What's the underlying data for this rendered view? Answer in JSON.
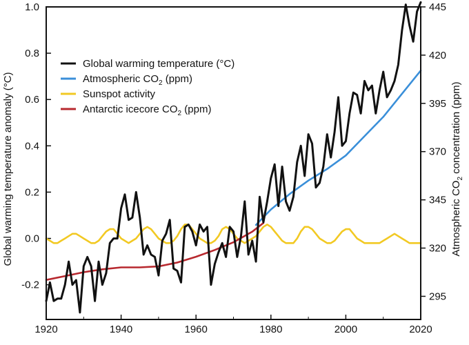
{
  "chart_data": {
    "type": "line",
    "title": "",
    "xlabel": "",
    "ylabel": "Global warming temperature anomaly (°C)",
    "y2label_parts": [
      "Atmospheric CO",
      "2",
      " concentration (ppm)"
    ],
    "xlim": [
      1920,
      2020
    ],
    "ylim": [
      -0.35,
      1.0
    ],
    "y2lim": [
      283,
      445
    ],
    "x_ticks": [
      1920,
      1940,
      1960,
      1980,
      2000,
      2020
    ],
    "x_tick_labels": [
      "1920",
      "1940",
      "1960",
      "1980",
      "2000",
      "2020"
    ],
    "y_ticks": [
      -0.2,
      0.0,
      0.2,
      0.4,
      0.6,
      0.8,
      1.0
    ],
    "y_tick_labels": [
      "-0.2",
      "0.0",
      "0.2",
      "0.4",
      "0.6",
      "0.8",
      "1.0"
    ],
    "y2_ticks": [
      295,
      320,
      345,
      370,
      395,
      420,
      445
    ],
    "y2_tick_labels": [
      "295",
      "320",
      "345",
      "370",
      "395",
      "420",
      "445"
    ],
    "grid": false,
    "legend_position": "top-left",
    "legend": [
      {
        "key": "temperature",
        "label": "Global warming temperature (°C)",
        "color": "#111111"
      },
      {
        "key": "atmospheric_co2",
        "label_parts": [
          "Atmospheric CO",
          "2",
          " (ppm)"
        ],
        "color": "#3a8fd9"
      },
      {
        "key": "sunspot",
        "label": "Sunspot activity",
        "color": "#f2c923"
      },
      {
        "key": "icecore_co2",
        "label_parts": [
          "Antarctic icecore CO",
          "2",
          " (ppm)"
        ],
        "color": "#b7282e"
      }
    ],
    "series": [
      {
        "key": "sunspot",
        "name": "Sunspot activity",
        "axis": "left",
        "color": "#f2c923",
        "x": [
          1920,
          1921,
          1922,
          1923,
          1924,
          1925,
          1926,
          1927,
          1928,
          1929,
          1930,
          1931,
          1932,
          1933,
          1934,
          1935,
          1936,
          1937,
          1938,
          1939,
          1940,
          1941,
          1942,
          1943,
          1944,
          1945,
          1946,
          1947,
          1948,
          1949,
          1950,
          1951,
          1952,
          1953,
          1954,
          1955,
          1956,
          1957,
          1958,
          1959,
          1960,
          1961,
          1962,
          1963,
          1964,
          1965,
          1966,
          1967,
          1968,
          1969,
          1970,
          1971,
          1972,
          1973,
          1974,
          1975,
          1976,
          1977,
          1978,
          1979,
          1980,
          1981,
          1982,
          1983,
          1984,
          1985,
          1986,
          1987,
          1988,
          1989,
          1990,
          1991,
          1992,
          1993,
          1994,
          1995,
          1996,
          1997,
          1998,
          1999,
          2000,
          2001,
          2002,
          2003,
          2004,
          2005,
          2006,
          2007,
          2008,
          2009,
          2010,
          2011,
          2012,
          2013,
          2014,
          2015,
          2016,
          2017,
          2018,
          2019,
          2020
        ],
        "values": [
          0.0,
          -0.01,
          -0.02,
          -0.02,
          -0.01,
          0.0,
          0.01,
          0.02,
          0.02,
          0.01,
          0.0,
          -0.01,
          -0.02,
          -0.02,
          -0.01,
          0.01,
          0.03,
          0.04,
          0.04,
          0.02,
          0.0,
          -0.01,
          -0.02,
          -0.01,
          0.0,
          0.02,
          0.04,
          0.05,
          0.04,
          0.02,
          0.0,
          -0.01,
          -0.02,
          -0.02,
          -0.01,
          0.01,
          0.04,
          0.06,
          0.06,
          0.04,
          0.02,
          0.0,
          -0.01,
          -0.02,
          -0.02,
          -0.01,
          0.01,
          0.04,
          0.05,
          0.04,
          0.02,
          0.0,
          -0.01,
          -0.02,
          -0.01,
          0.0,
          0.01,
          0.03,
          0.05,
          0.06,
          0.05,
          0.03,
          0.01,
          -0.01,
          -0.02,
          -0.02,
          -0.02,
          0.0,
          0.03,
          0.05,
          0.05,
          0.04,
          0.02,
          0.0,
          -0.01,
          -0.02,
          -0.02,
          -0.01,
          0.01,
          0.03,
          0.04,
          0.04,
          0.02,
          0.0,
          -0.01,
          -0.02,
          -0.02,
          -0.02,
          -0.02,
          -0.02,
          -0.01,
          0.0,
          0.01,
          0.02,
          0.01,
          0.0,
          -0.01,
          -0.02,
          -0.02,
          -0.02,
          -0.02
        ]
      },
      {
        "key": "icecore_co2",
        "name": "Antarctic icecore CO2 (ppm)",
        "axis": "right",
        "color": "#b7282e",
        "x": [
          1920,
          1925,
          1930,
          1935,
          1940,
          1945,
          1950,
          1955,
          1960,
          1965,
          1970,
          1975,
          1978
        ],
        "values": [
          303.5,
          305.5,
          307.5,
          309,
          310,
          310,
          310.5,
          312.5,
          315.5,
          319,
          323,
          328.5,
          333
        ]
      },
      {
        "key": "atmospheric_co2",
        "name": "Atmospheric CO2 (ppm)",
        "axis": "right",
        "color": "#3a8fd9",
        "x": [
          1976,
          1980,
          1985,
          1990,
          1995,
          2000,
          2005,
          2010,
          2015,
          2020
        ],
        "values": [
          332,
          340,
          348,
          355,
          361,
          368,
          378,
          388,
          400,
          412
        ]
      },
      {
        "key": "temperature",
        "name": "Global warming temperature (°C)",
        "axis": "left",
        "color": "#111111",
        "x": [
          1920,
          1921,
          1922,
          1923,
          1924,
          1925,
          1926,
          1927,
          1928,
          1929,
          1930,
          1931,
          1932,
          1933,
          1934,
          1935,
          1936,
          1937,
          1938,
          1939,
          1940,
          1941,
          1942,
          1943,
          1944,
          1945,
          1946,
          1947,
          1948,
          1949,
          1950,
          1951,
          1952,
          1953,
          1954,
          1955,
          1956,
          1957,
          1958,
          1959,
          1960,
          1961,
          1962,
          1963,
          1964,
          1965,
          1966,
          1967,
          1968,
          1969,
          1970,
          1971,
          1972,
          1973,
          1974,
          1975,
          1976,
          1977,
          1978,
          1979,
          1980,
          1981,
          1982,
          1983,
          1984,
          1985,
          1986,
          1987,
          1988,
          1989,
          1990,
          1991,
          1992,
          1993,
          1994,
          1995,
          1996,
          1997,
          1998,
          1999,
          2000,
          2001,
          2002,
          2003,
          2004,
          2005,
          2006,
          2007,
          2008,
          2009,
          2010,
          2011,
          2012,
          2013,
          2014,
          2015,
          2016,
          2017,
          2018,
          2019,
          2020
        ],
        "values": [
          -0.27,
          -0.19,
          -0.27,
          -0.26,
          -0.26,
          -0.2,
          -0.1,
          -0.2,
          -0.18,
          -0.32,
          -0.12,
          -0.08,
          -0.12,
          -0.27,
          -0.1,
          -0.2,
          -0.15,
          -0.02,
          0.0,
          0.0,
          0.13,
          0.19,
          0.08,
          0.09,
          0.2,
          0.09,
          -0.07,
          -0.03,
          -0.07,
          -0.08,
          -0.16,
          -0.01,
          0.02,
          0.08,
          -0.13,
          -0.14,
          -0.19,
          0.05,
          0.06,
          0.03,
          -0.03,
          0.06,
          0.03,
          0.05,
          -0.2,
          -0.11,
          -0.06,
          -0.02,
          -0.08,
          0.05,
          0.03,
          -0.08,
          0.01,
          0.16,
          -0.07,
          -0.01,
          -0.1,
          0.18,
          0.07,
          0.16,
          0.26,
          0.32,
          0.14,
          0.31,
          0.16,
          0.12,
          0.18,
          0.33,
          0.4,
          0.27,
          0.45,
          0.41,
          0.22,
          0.24,
          0.31,
          0.45,
          0.35,
          0.46,
          0.61,
          0.4,
          0.42,
          0.54,
          0.63,
          0.62,
          0.54,
          0.68,
          0.64,
          0.66,
          0.54,
          0.64,
          0.72,
          0.61,
          0.64,
          0.68,
          0.75,
          0.9,
          1.01,
          0.92,
          0.85,
          0.98,
          1.02
        ]
      }
    ]
  }
}
